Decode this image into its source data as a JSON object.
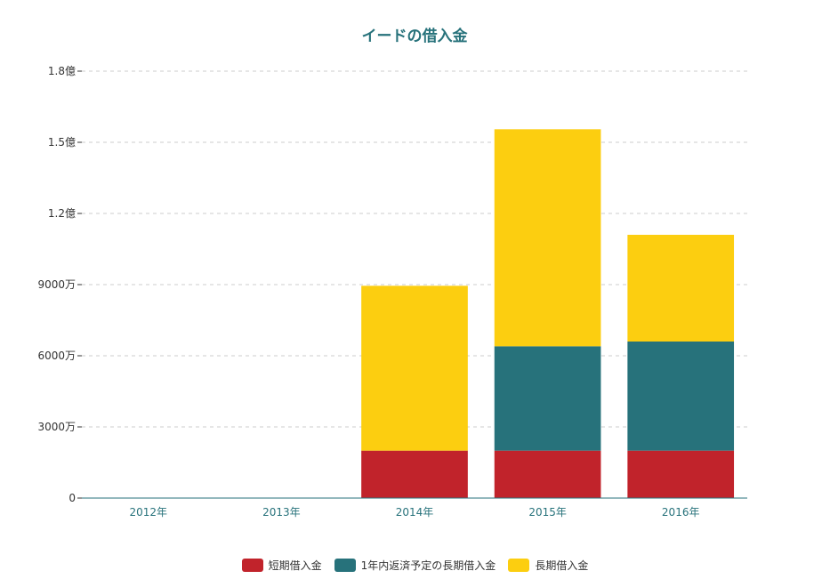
{
  "chart_data": {
    "type": "bar",
    "stacked": true,
    "title": "イードの借入金",
    "categories": [
      "2012年",
      "2013年",
      "2014年",
      "2015年",
      "2016年"
    ],
    "series": [
      {
        "name": "短期借入金",
        "color": "#c1232b",
        "values": [
          0,
          0,
          20000000,
          20000000,
          20000000
        ]
      },
      {
        "name": "1年内返済予定の長期借入金",
        "color": "#27727b",
        "values": [
          0,
          0,
          0,
          44000000,
          46000000
        ]
      },
      {
        "name": "長期借入金",
        "color": "#fcce10",
        "values": [
          0,
          0,
          69500000,
          91500000,
          45000000
        ]
      }
    ],
    "yticks": [
      {
        "value": 0,
        "label": "0"
      },
      {
        "value": 30000000,
        "label": "3000万"
      },
      {
        "value": 60000000,
        "label": "6000万"
      },
      {
        "value": 90000000,
        "label": "9000万"
      },
      {
        "value": 120000000,
        "label": "1.2億"
      },
      {
        "value": 150000000,
        "label": "1.5億"
      },
      {
        "value": 180000000,
        "label": "1.8億"
      }
    ],
    "ylim": [
      0,
      180000000
    ],
    "grid": true,
    "legend_position": "bottom-center",
    "colors": {
      "title": "#27727b",
      "axis": "#27727b",
      "grid": "#cccccc"
    }
  }
}
